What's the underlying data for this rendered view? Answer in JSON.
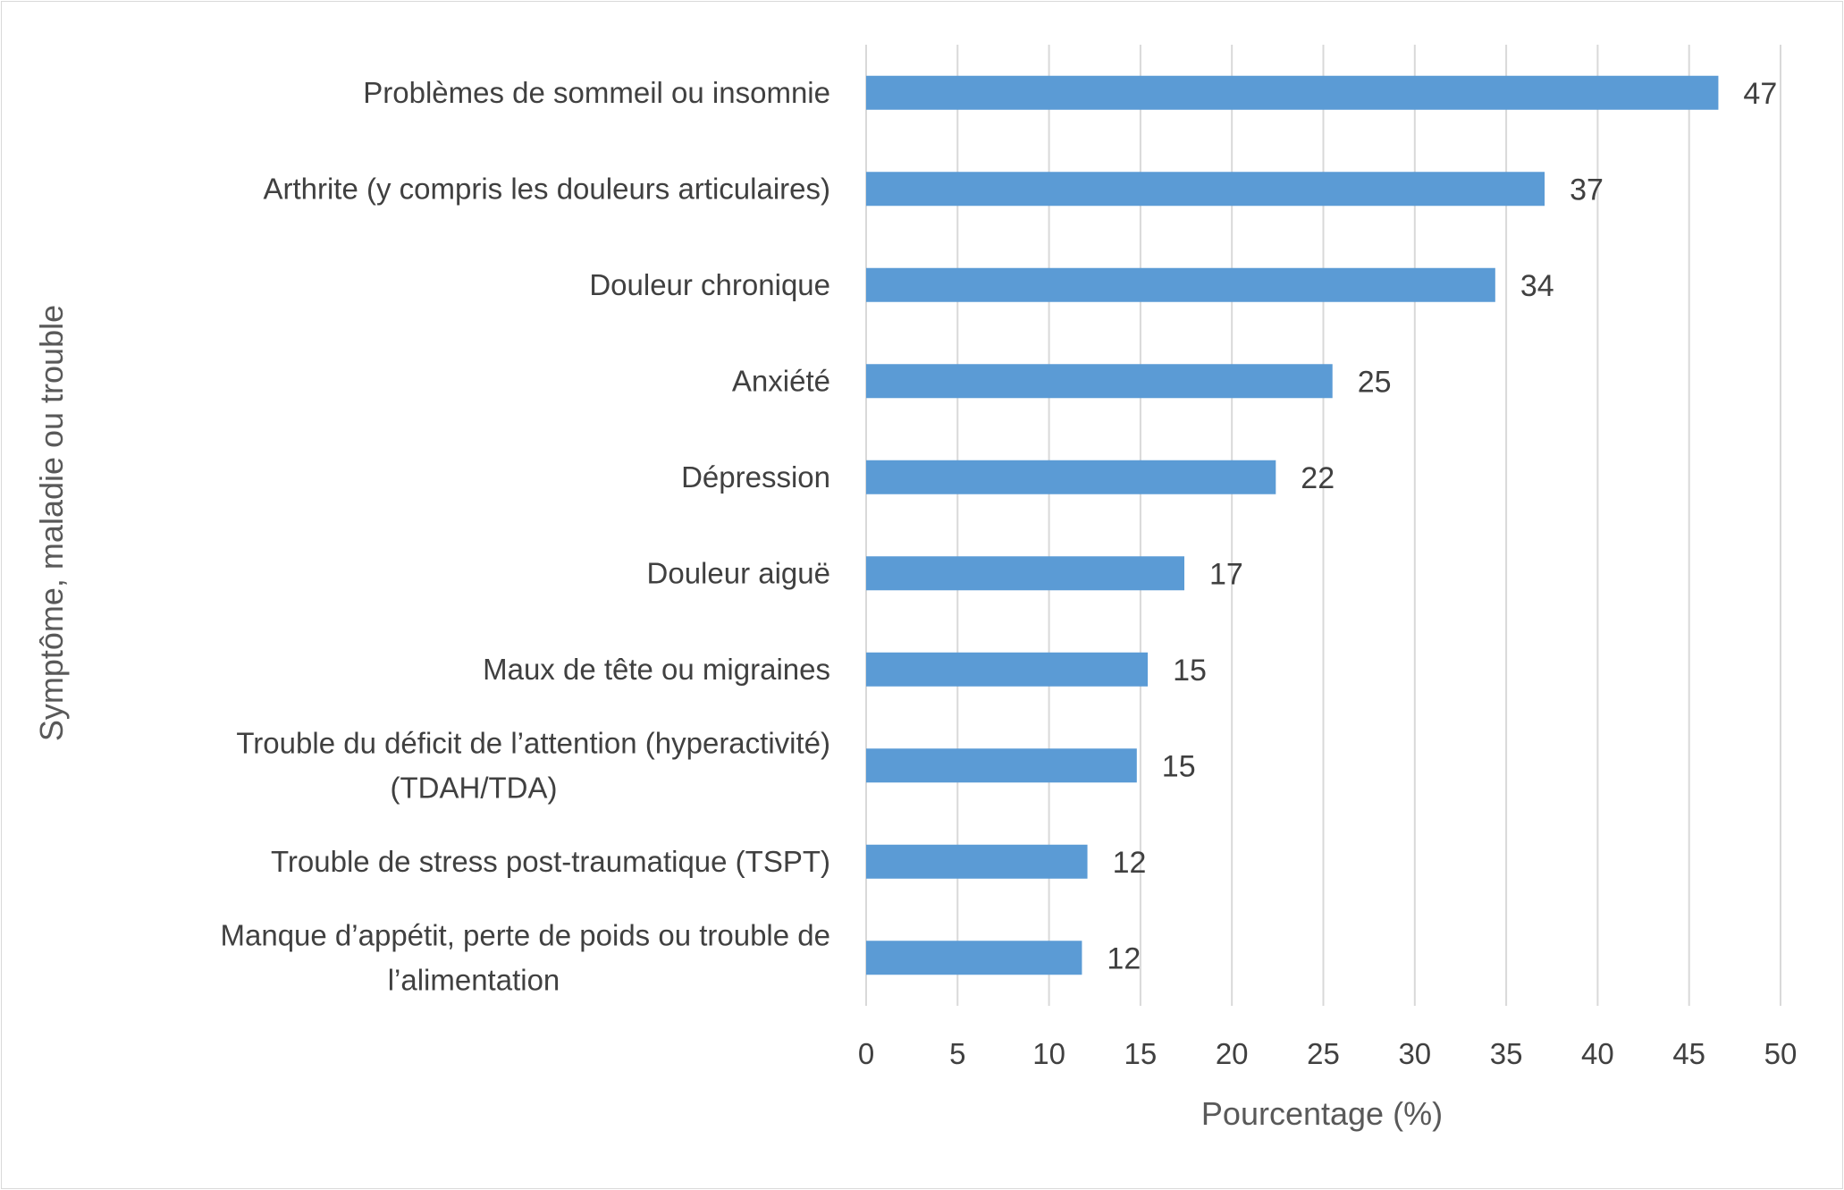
{
  "chart_data": {
    "type": "bar",
    "orientation": "horizontal",
    "title": "",
    "xlabel": "Pourcentage (%)",
    "ylabel": "Symptôme, maladie ou trouble",
    "xlim": [
      0,
      50
    ],
    "xticks": [
      "0",
      "5",
      "10",
      "15",
      "20",
      "25",
      "30",
      "35",
      "40",
      "45",
      "50"
    ],
    "grid": true,
    "bar_color": "#5b9bd5",
    "categories": [
      [
        "Problèmes de sommeil ou insomnie"
      ],
      [
        "Arthrite (y compris les douleurs articulaires)"
      ],
      [
        "Douleur chronique"
      ],
      [
        "Anxiété"
      ],
      [
        "Dépression"
      ],
      [
        "Douleur aiguë"
      ],
      [
        "Maux de tête ou migraines"
      ],
      [
        "Trouble du déficit de l’attention (hyperactivité)",
        "(TDAH/TDA)"
      ],
      [
        "Trouble de stress post-traumatique (TSPT)"
      ],
      [
        "Manque d’appétit, perte de poids ou trouble de",
        "l’alimentation"
      ]
    ],
    "values": [
      46.6,
      37.1,
      34.4,
      25.5,
      22.4,
      17.4,
      15.4,
      14.8,
      12.1,
      11.8
    ],
    "data_labels": [
      "47",
      "37",
      "34",
      "25",
      "22",
      "17",
      "15",
      "15",
      "12",
      "12"
    ]
  }
}
